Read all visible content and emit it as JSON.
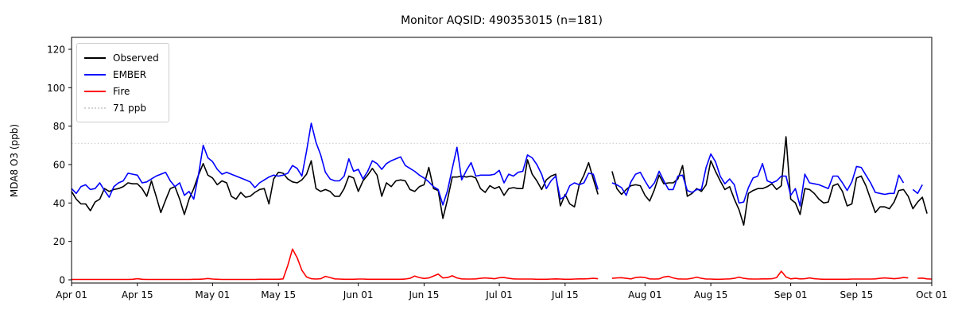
{
  "chart_data": {
    "type": "line",
    "title": "Monitor AQSID: 490353015 (n=181)",
    "xlabel": "",
    "ylabel": "MDA8 O3 (ppb)",
    "ylim": [
      0,
      120
    ],
    "yticks": [
      0,
      20,
      40,
      60,
      80,
      100,
      120
    ],
    "x_axis": {
      "unit": "days since Apr 01",
      "range_days": 183,
      "tick_days": [
        0,
        14,
        30,
        44,
        61,
        75,
        91,
        105,
        122,
        136,
        153,
        167,
        183
      ],
      "tick_labels": [
        "Apr 01",
        "Apr 15",
        "May 01",
        "May 15",
        "Jun 01",
        "Jun 15",
        "Jul 01",
        "Jul 15",
        "Aug 01",
        "Aug 15",
        "Sep 01",
        "Sep 15",
        "Oct 01"
      ]
    },
    "grid": false,
    "legend": [
      "Observed",
      "EMBER",
      "Fire",
      "71 ppb"
    ],
    "legend_position": "upper left",
    "threshold": {
      "label": "71 ppb",
      "value": 71,
      "color": "#d3d3d3",
      "style": "dotted"
    },
    "frame_color": "#000000",
    "series": [
      {
        "name": "Observed",
        "color": "#000000",
        "values": [
          46,
          42,
          39.5,
          39.5,
          36,
          40.5,
          42,
          47.5,
          46,
          47,
          47.5,
          48.5,
          50.5,
          50,
          50,
          47.5,
          43.5,
          51.5,
          43.5,
          35,
          41.5,
          47.5,
          48.5,
          42,
          34,
          42,
          47.5,
          54.5,
          60.5,
          54.5,
          53,
          49.5,
          51.5,
          50.5,
          43.5,
          42,
          45.5,
          43,
          43.5,
          45.5,
          47,
          47.5,
          39.5,
          52.5,
          56,
          55.5,
          52.5,
          51,
          50.5,
          52,
          55,
          62,
          47.5,
          46,
          47,
          46,
          43.5,
          43.5,
          47.5,
          54,
          53,
          46,
          51.5,
          54.5,
          58,
          54.5,
          43.5,
          50.5,
          48.5,
          51.5,
          52,
          51.5,
          47,
          46,
          48.5,
          49.5,
          58.5,
          47.5,
          46.5,
          32,
          42,
          53.5,
          53.5,
          54,
          53.5,
          54,
          53,
          47.5,
          45.5,
          49,
          47.5,
          48.5,
          44,
          47.5,
          48,
          47.5,
          47.5,
          62.5,
          55,
          51.5,
          47,
          52,
          54,
          55,
          38.5,
          44.5,
          39.5,
          38,
          49.5,
          54.5,
          61,
          52.5,
          44.5,
          null,
          null,
          56.5,
          47.5,
          44.5,
          47,
          49,
          49.5,
          49,
          44,
          41,
          47,
          54.5,
          50,
          50.5,
          50.5,
          52.5,
          59.5,
          43.5,
          45,
          47.5,
          46,
          49.5,
          62,
          56.5,
          51.5,
          47,
          48.5,
          42,
          36.5,
          28.5,
          45,
          46.5,
          47.5,
          47.5,
          48.5,
          50,
          47,
          49,
          74.5,
          42,
          40,
          34,
          47.5,
          47,
          45,
          42,
          40,
          40.5,
          49,
          50,
          46,
          38.5,
          39.5,
          53,
          54,
          49,
          42,
          35,
          38,
          38,
          37,
          40.5,
          46.5,
          47,
          43.5,
          37,
          40.5,
          43,
          34.5,
          null
        ]
      },
      {
        "name": "EMBER",
        "color": "#0000ff",
        "values": [
          47.5,
          45,
          48.5,
          49.5,
          47,
          47.5,
          50.5,
          46.5,
          43,
          48.5,
          50.5,
          51.5,
          55.5,
          55,
          54.5,
          50.5,
          51,
          52.5,
          54,
          55,
          56,
          51.5,
          48.5,
          50.5,
          44,
          46,
          42,
          54.5,
          70,
          63.5,
          61.5,
          57.5,
          55,
          56,
          55,
          54,
          53,
          52,
          51,
          48,
          50.5,
          52,
          53.5,
          54.5,
          54,
          54.5,
          55.5,
          59.5,
          58,
          54,
          67,
          81.5,
          71.5,
          65,
          56,
          52.5,
          51.5,
          51.5,
          54,
          63,
          56.5,
          57.5,
          52.5,
          56.5,
          62,
          60.5,
          57.5,
          60.5,
          62,
          63,
          64,
          59.5,
          58,
          56.5,
          54.5,
          53,
          51,
          48.5,
          47,
          39,
          46.5,
          58,
          69,
          52,
          57,
          61,
          54,
          54.5,
          54.5,
          54.5,
          55,
          57,
          50.5,
          55,
          54,
          56,
          56.5,
          65,
          63.5,
          60,
          55,
          47.5,
          51.5,
          54,
          42,
          43.5,
          49,
          50.5,
          49.5,
          50.5,
          55.5,
          55,
          47,
          null,
          null,
          50.5,
          49.5,
          48,
          44,
          51,
          55,
          56,
          51.5,
          47.5,
          50.5,
          56.5,
          51.5,
          47,
          47,
          54,
          54.5,
          46.5,
          45.5,
          47,
          47,
          58.5,
          65.5,
          61.5,
          54,
          50,
          52.5,
          49.5,
          40,
          40.5,
          48,
          53,
          54,
          60.5,
          51.5,
          50.5,
          51.5,
          54,
          54,
          44,
          47.5,
          38.5,
          55,
          50.5,
          50,
          49.5,
          48.5,
          47.5,
          54,
          54,
          50.5,
          46.5,
          51,
          59,
          58.5,
          54.5,
          50.5,
          45.5,
          45,
          44.5,
          45,
          45,
          54.5,
          50.5,
          null,
          47,
          45,
          49.5,
          null,
          null
        ]
      },
      {
        "name": "Fire",
        "color": "#ff0000",
        "values": [
          0.2,
          0.2,
          0.2,
          0.2,
          0.2,
          0.2,
          0.2,
          0.2,
          0.2,
          0.2,
          0.2,
          0.2,
          0.2,
          0.3,
          0.6,
          0.3,
          0.2,
          0.2,
          0.2,
          0.2,
          0.2,
          0.2,
          0.2,
          0.2,
          0.2,
          0.2,
          0.3,
          0.3,
          0.4,
          0.7,
          0.4,
          0.3,
          0.2,
          0.2,
          0.2,
          0.2,
          0.2,
          0.2,
          0.2,
          0.2,
          0.3,
          0.3,
          0.3,
          0.3,
          0.3,
          0.5,
          7.5,
          16,
          11.5,
          5,
          1.5,
          0.6,
          0.4,
          0.6,
          1.8,
          1.2,
          0.5,
          0.4,
          0.3,
          0.3,
          0.3,
          0.4,
          0.4,
          0.3,
          0.3,
          0.3,
          0.3,
          0.3,
          0.3,
          0.3,
          0.3,
          0.4,
          0.8,
          2,
          1.2,
          0.7,
          1,
          2,
          3,
          1,
          1.2,
          2.1,
          1,
          0.5,
          0.4,
          0.4,
          0.5,
          0.8,
          1,
          0.8,
          0.6,
          1.1,
          1.2,
          0.8,
          0.5,
          0.4,
          0.4,
          0.4,
          0.4,
          0.3,
          0.3,
          0.3,
          0.4,
          0.5,
          0.4,
          0.3,
          0.3,
          0.4,
          0.5,
          0.5,
          0.6,
          0.8,
          0.6,
          null,
          null,
          0.8,
          1,
          1.1,
          0.8,
          0.5,
          1.2,
          1.4,
          1.2,
          0.5,
          0.4,
          0.5,
          1.5,
          1.8,
          1,
          0.5,
          0.4,
          0.4,
          0.8,
          1.4,
          0.8,
          0.4,
          0.4,
          0.3,
          0.3,
          0.4,
          0.5,
          0.8,
          1.4,
          0.8,
          0.5,
          0.4,
          0.4,
          0.5,
          0.5,
          0.6,
          1.2,
          4.5,
          1.5,
          0.5,
          0.8,
          0.5,
          0.6,
          1,
          0.6,
          0.4,
          0.3,
          0.3,
          0.3,
          0.3,
          0.3,
          0.3,
          0.4,
          0.4,
          0.4,
          0.4,
          0.4,
          0.5,
          0.8,
          1,
          0.8,
          0.6,
          0.8,
          1.2,
          1,
          null,
          0.8,
          0.9,
          0.5,
          0.4
        ]
      }
    ]
  }
}
